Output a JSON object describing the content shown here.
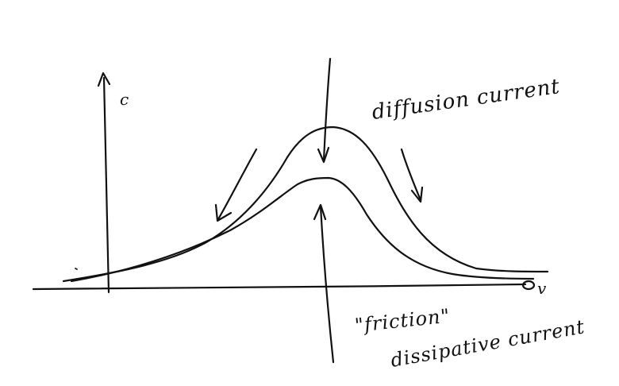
{
  "diagram": {
    "y_axis_label": "c",
    "x_axis_label": "v",
    "annotations": {
      "diffusion": "diffusion current",
      "friction": "\"friction\"",
      "dissipative": "dissipative current"
    },
    "ink_color": "#111111"
  }
}
